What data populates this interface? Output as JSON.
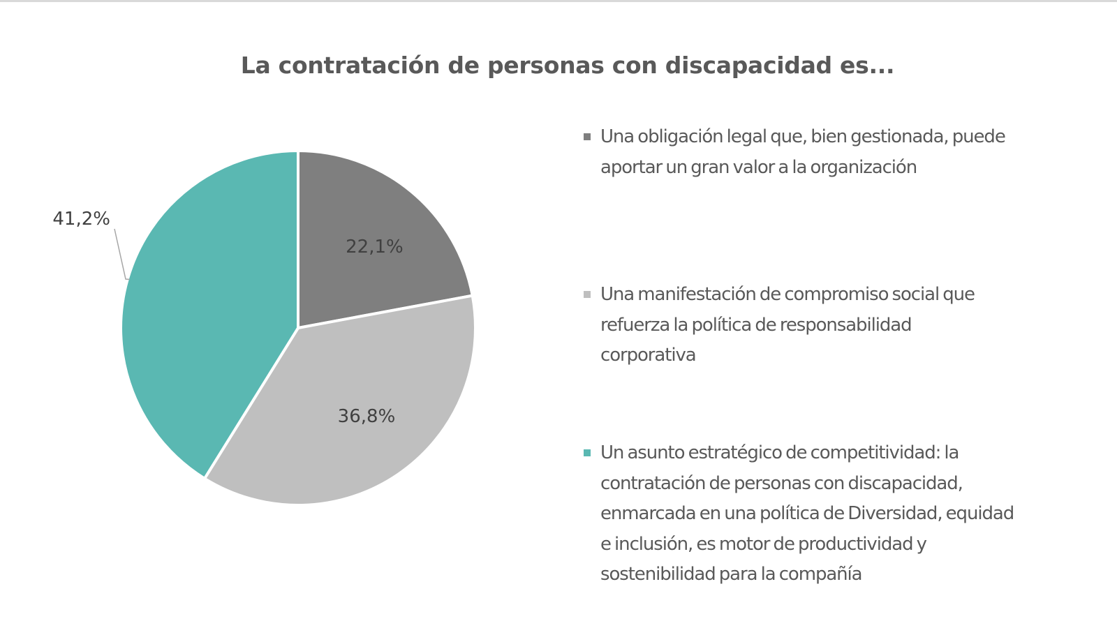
{
  "chart_data": {
    "type": "pie",
    "title": "La contratación de personas con discapacidad es...",
    "start_angle_deg": 0,
    "direction": "clockwise",
    "legend_position": "right",
    "slices": [
      {
        "label": "Una obligación legal que, bien gestionada, puede aportar un gran valor a la organización",
        "legend_lines": "Una obligación legal que, bien gestionada, puede\naportar un gran valor a la organización",
        "value": 22.1,
        "data_label": "22,1%",
        "color": "#7f7f7f",
        "label_placement": "inside"
      },
      {
        "label": "Una manifestación de compromiso social que refuerza  la política de responsabilidad corporativa",
        "legend_lines": "Una manifestación de compromiso social que\nrefuerza  la política de responsabilidad\ncorporativa",
        "value": 36.8,
        "data_label": "36,8%",
        "color": "#bfbfbf",
        "label_placement": "inside"
      },
      {
        "label": "Un asunto estratégico de competitividad: la contratación de personas con discapacidad, enmarcada en una política de Diversidad, equidad e inclusión, es motor de productividad y sostenibilidad para la compañía",
        "legend_lines": "Un asunto estratégico de competitividad: la\ncontratación de personas con discapacidad,\nenmarcada en una política de Diversidad, equidad\ne inclusión, es motor de productividad y\nsostenibilidad para la compañía",
        "value": 41.2,
        "data_label": "41,2%",
        "color": "#5ab8b2",
        "label_placement": "outside-with-leader"
      }
    ]
  }
}
